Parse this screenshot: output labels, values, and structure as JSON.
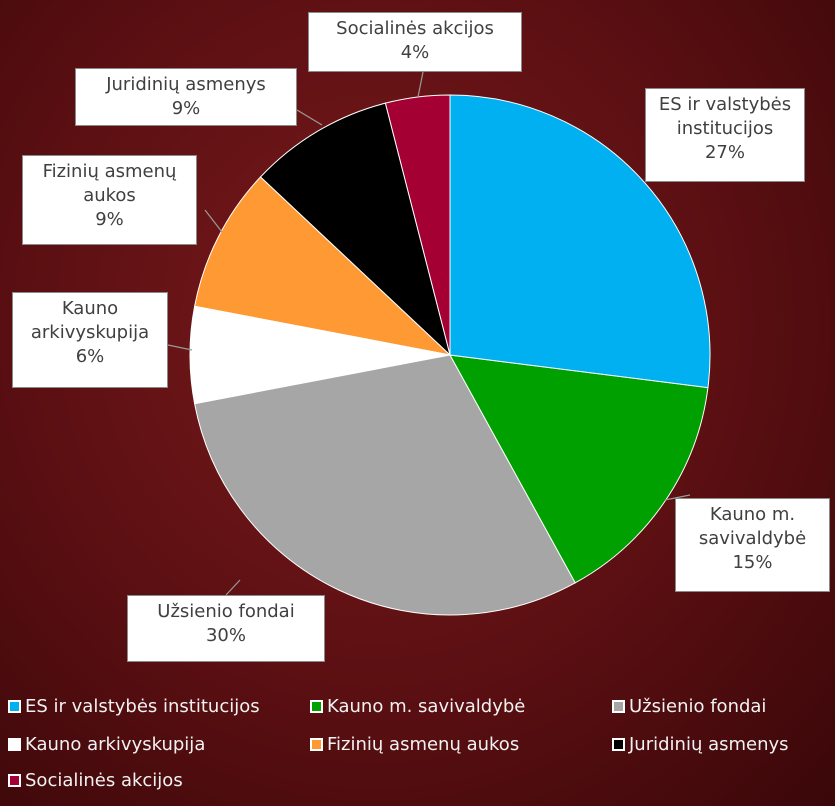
{
  "chart_data": {
    "type": "pie",
    "categories": [
      "ES ir valstybės institucijos",
      "Kauno m. savivaldybė",
      "Užsienio fondai",
      "Kauno arkivyskupija",
      "Fizinių asmenų aukos",
      "Juridinių asmenys",
      "Socialinės akcijos"
    ],
    "values": [
      27,
      15,
      30,
      6,
      9,
      9,
      4
    ],
    "value_labels": [
      "27%",
      "15%",
      "30%",
      "6%",
      "9%",
      "9%",
      "4%"
    ],
    "colors": [
      "#00b0f0",
      "#00a000",
      "#a6a6a6",
      "#ffffff",
      "#ff9933",
      "#000000",
      "#a50034"
    ],
    "legend": "bottom"
  }
}
